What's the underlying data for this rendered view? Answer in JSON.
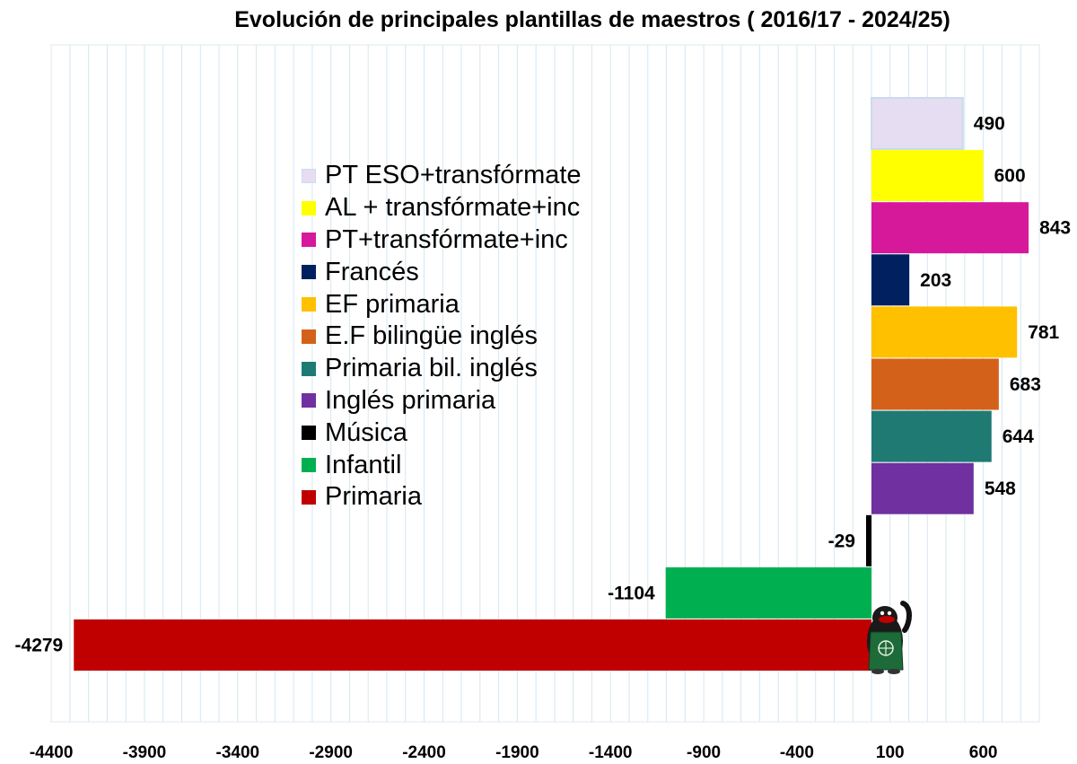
{
  "chart_data": {
    "type": "bar",
    "orientation": "horizontal",
    "title": "Evolución de principales plantillas de maestros ( 2016/17 - 2024/25)",
    "xlabel": "",
    "ylabel": "",
    "xlim": [
      -4400,
      900
    ],
    "x_ticks": [
      -4400,
      -3900,
      -3400,
      -2900,
      -2400,
      -1900,
      -1400,
      -900,
      -400,
      100,
      600
    ],
    "grid": true,
    "legend_position": "center-left",
    "categories": [
      "PT ESO+transfórmate",
      "AL + transfórmate+inc",
      "PT+transfórmate+inc",
      "Francés",
      "EF primaria",
      "E.F bilingüe inglés",
      "Primaria bil. inglés",
      "Inglés primaria",
      "Música",
      "Infantil",
      "Primaria"
    ],
    "values": [
      490,
      600,
      843,
      203,
      781,
      683,
      644,
      548,
      -29,
      -1104,
      -4279
    ],
    "colors": [
      "#E6DDF2",
      "#FFFF00",
      "#D6189B",
      "#002060",
      "#FFC000",
      "#D4611A",
      "#1F7A73",
      "#7030A0",
      "#000000",
      "#00B050",
      "#C00000"
    ],
    "value_labels": [
      "490",
      "600",
      "843",
      "203",
      "781",
      "683",
      "644",
      "548",
      "-29",
      "-1104",
      "-4279"
    ]
  }
}
